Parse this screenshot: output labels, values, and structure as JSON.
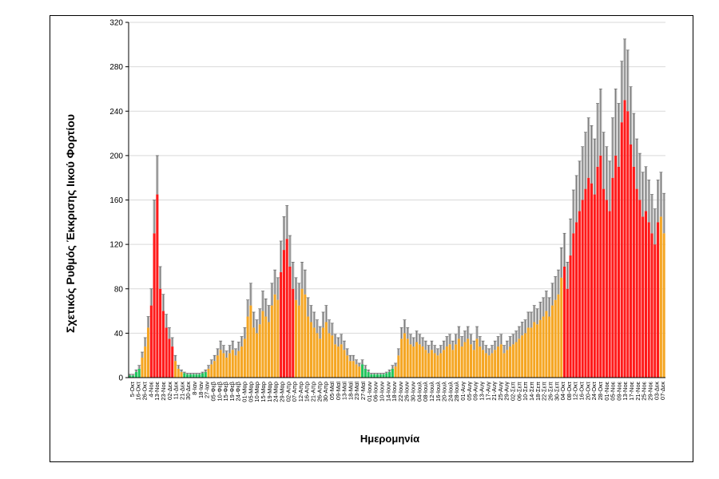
{
  "chart_data": {
    "type": "bar",
    "title": "",
    "xlabel": "Ημερομηνία",
    "ylabel": "Σχετικός Ρυθμός Έκκρισης Ιικού Φορτίου",
    "ylim": [
      0,
      320
    ],
    "yticks": [
      0,
      40,
      80,
      120,
      160,
      200,
      240,
      280,
      320
    ],
    "grid": true,
    "legend": "none",
    "colors": {
      "red": "#ff1a1a",
      "orange": "#f5a623",
      "green": "#22c55e",
      "error_bar": "#a9a9a9",
      "whisker": "#555555"
    },
    "x_labels": [
      "5-Οκτ",
      "16-Οκτ",
      "26-Οκτ",
      "4-Νοε",
      "13-Νοε",
      "23-Νοε",
      "02-Δεκ",
      "11-Δεκ",
      "21-Δεκ",
      "30-Δεκ",
      "8-Ιαν",
      "18-Ιαν",
      "27-Ιαν",
      "05-Φεβ",
      "10-Φεβ",
      "15-Φεβ",
      "19-Φεβ",
      "24-Φεβ",
      "01-Μαρ",
      "05-Μαρ",
      "10-Μαρ",
      "15-Μαρ",
      "19-Μαρ",
      "24-Μαρ",
      "29-Μαρ",
      "02-Απρ",
      "07-Απρ",
      "12-Απρ",
      "16-Απρ",
      "21-Απρ",
      "26-Απρ",
      "30-Απρ",
      "05-Μαϊ",
      "09-Μαϊ",
      "13-Μαϊ",
      "18-Μαϊ",
      "23-Μαϊ",
      "27-Μαϊ",
      "01-Ιουν",
      "06-Ιουν",
      "10-Ιουν",
      "14-Ιουν",
      "18-Ιουν",
      "22-Ιουν",
      "26-Ιουν",
      "30-Ιουν",
      "04-Ιουλ",
      "08-Ιουλ",
      "12-Ιουλ",
      "16-Ιουλ",
      "20-Ιουλ",
      "24-Ιουλ",
      "28-Ιουλ",
      "01-Αυγ",
      "05-Αυγ",
      "09-Αυγ",
      "13-Αυγ",
      "17-Αυγ",
      "21-Αυγ",
      "25-Αυγ",
      "29-Αυγ",
      "02-Σεπ",
      "06-Σεπ",
      "10-Σεπ",
      "14-Σεπ",
      "18-Σεπ",
      "22-Σεπ",
      "26-Σεπ",
      "30-Σεπ",
      "04-Οκτ",
      "08-Οκτ",
      "12-Οκτ",
      "16-Οκτ",
      "20-Οκτ",
      "24-Οκτ",
      "28-Οκτ",
      "01-Νοε",
      "05-Νοε",
      "09-Νοε",
      "13-Νοε",
      "17-Νοε",
      "21-Νοε",
      "25-Νοε",
      "29-Νοε",
      "03-Δεκ",
      "07-Δεκ"
    ],
    "values": [
      2,
      2,
      5,
      8,
      18,
      28,
      45,
      65,
      130,
      165,
      80,
      60,
      45,
      35,
      28,
      15,
      8,
      5,
      4,
      3,
      3,
      3,
      3,
      3,
      4,
      5,
      8,
      12,
      15,
      20,
      25,
      22,
      18,
      22,
      25,
      20,
      24,
      28,
      35,
      55,
      65,
      45,
      40,
      48,
      60,
      55,
      50,
      65,
      75,
      70,
      95,
      115,
      125,
      100,
      80,
      70,
      65,
      80,
      75,
      55,
      50,
      45,
      40,
      35,
      45,
      50,
      40,
      38,
      30,
      28,
      30,
      25,
      20,
      15,
      15,
      12,
      10,
      12,
      8,
      5,
      3,
      3,
      3,
      3,
      3,
      4,
      5,
      8,
      10,
      20,
      35,
      40,
      35,
      30,
      28,
      32,
      30,
      28,
      25,
      22,
      25,
      22,
      20,
      22,
      25,
      28,
      30,
      25,
      30,
      35,
      28,
      32,
      35,
      30,
      25,
      35,
      28,
      25,
      22,
      20,
      22,
      25,
      28,
      30,
      22,
      25,
      28,
      30,
      32,
      35,
      38,
      40,
      45,
      45,
      50,
      48,
      52,
      55,
      60,
      55,
      65,
      70,
      75,
      90,
      100,
      80,
      110,
      130,
      140,
      150,
      160,
      170,
      180,
      175,
      165,
      190,
      200,
      170,
      160,
      150,
      180,
      200,
      190,
      230,
      250,
      240,
      210,
      190,
      170,
      160,
      145,
      150,
      140,
      130,
      120,
      140,
      145,
      130
    ],
    "errors": [
      1,
      1,
      2,
      3,
      5,
      8,
      10,
      15,
      30,
      35,
      20,
      15,
      12,
      10,
      8,
      5,
      3,
      2,
      1,
      1,
      1,
      1,
      1,
      1,
      1,
      2,
      3,
      4,
      5,
      6,
      8,
      7,
      6,
      7,
      8,
      6,
      8,
      9,
      10,
      15,
      20,
      14,
      12,
      14,
      18,
      16,
      15,
      20,
      22,
      20,
      28,
      30,
      30,
      28,
      24,
      20,
      20,
      24,
      22,
      17,
      15,
      14,
      12,
      11,
      14,
      15,
      12,
      11,
      9,
      8,
      9,
      8,
      6,
      5,
      5,
      4,
      3,
      4,
      3,
      2,
      1,
      1,
      1,
      1,
      1,
      1,
      2,
      3,
      3,
      6,
      10,
      12,
      10,
      9,
      8,
      10,
      9,
      8,
      8,
      7,
      8,
      7,
      6,
      7,
      8,
      9,
      9,
      8,
      9,
      11,
      9,
      10,
      11,
      9,
      8,
      11,
      9,
      8,
      7,
      6,
      7,
      8,
      9,
      9,
      7,
      8,
      9,
      9,
      10,
      11,
      12,
      12,
      14,
      14,
      15,
      14,
      16,
      17,
      18,
      17,
      20,
      21,
      22,
      27,
      30,
      24,
      33,
      39,
      42,
      45,
      48,
      51,
      54,
      52,
      50,
      57,
      60,
      51,
      48,
      45,
      54,
      60,
      57,
      55,
      55,
      55,
      52,
      48,
      45,
      42,
      40,
      40,
      38,
      35,
      32,
      38,
      40,
      36
    ],
    "segments": [
      {
        "color": "green",
        "from": 0,
        "to": 4
      },
      {
        "color": "orange",
        "from": 4,
        "to": 7
      },
      {
        "color": "red",
        "from": 7,
        "to": 15
      },
      {
        "color": "orange",
        "from": 15,
        "to": 18
      },
      {
        "color": "green",
        "from": 18,
        "to": 26
      },
      {
        "color": "orange",
        "from": 26,
        "to": 50
      },
      {
        "color": "red",
        "from": 50,
        "to": 55
      },
      {
        "color": "orange",
        "from": 55,
        "to": 77
      },
      {
        "color": "green",
        "from": 77,
        "to": 88
      },
      {
        "color": "orange",
        "from": 88,
        "to": 144
      },
      {
        "color": "red",
        "from": 144,
        "to": 176
      }
    ]
  }
}
